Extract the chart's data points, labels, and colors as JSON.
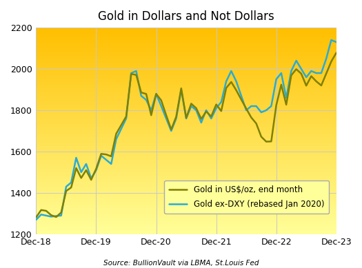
{
  "title": "Gold in Dollars and Not Dollars",
  "source": "Source: BullionVault via LBMA, St.Louis Fed",
  "legend_line1": "Gold in US$/oz, end month",
  "legend_line2": "Gold ex-DXY (rebased Jan 2020)",
  "color_usd": "#808000",
  "color_dxy": "#29ABD4",
  "ylim": [
    1200,
    2200
  ],
  "yticks": [
    1200,
    1400,
    1600,
    1800,
    2000,
    2200
  ],
  "gold_usd": [
    1282,
    1317,
    1313,
    1292,
    1283,
    1305,
    1409,
    1426,
    1520,
    1472,
    1510,
    1463,
    1517,
    1589,
    1586,
    1577,
    1686,
    1728,
    1770,
    1976,
    1971,
    1886,
    1879,
    1776,
    1879,
    1848,
    1776,
    1707,
    1769,
    1906,
    1763,
    1832,
    1810,
    1758,
    1794,
    1770,
    1828,
    1796,
    1908,
    1937,
    1897,
    1852,
    1808,
    1765,
    1736,
    1672,
    1648,
    1649,
    1824,
    1924,
    1827,
    1969,
    1999,
    1977,
    1919,
    1965,
    1940,
    1920,
    1978,
    2036,
    2078
  ],
  "gold_dxy": [
    1270,
    1295,
    1290,
    1285,
    1288,
    1290,
    1430,
    1450,
    1570,
    1500,
    1540,
    1470,
    1510,
    1580,
    1560,
    1540,
    1660,
    1710,
    1760,
    1980,
    1990,
    1870,
    1850,
    1800,
    1880,
    1820,
    1760,
    1700,
    1760,
    1900,
    1760,
    1820,
    1800,
    1740,
    1800,
    1760,
    1810,
    1840,
    1940,
    1990,
    1940,
    1870,
    1800,
    1820,
    1820,
    1790,
    1800,
    1820,
    1950,
    1980,
    1860,
    1990,
    2040,
    2000,
    1960,
    1990,
    1980,
    1980,
    2050,
    2140,
    2130
  ],
  "xtick_labels": [
    "Dec-18",
    "Dec-19",
    "Dec-20",
    "Dec-21",
    "Dec-22",
    "Dec-23"
  ],
  "xtick_positions": [
    0,
    12,
    24,
    36,
    48,
    60
  ],
  "bg_color_top": "#FFC000",
  "bg_color_bottom": "#FFFF99",
  "grid_color": "#C8C8C8",
  "legend_facecolor": "#FFFF99",
  "legend_edgecolor": "#AAAAAA"
}
